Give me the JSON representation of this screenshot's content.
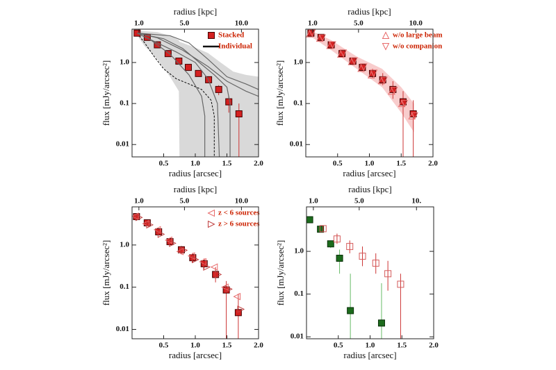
{
  "chart_data": [
    {
      "type": "scatter",
      "log_y": true,
      "xlabel": "radius  [arcsec]",
      "x2label": "radius  [kpc]",
      "ylabel": "flux  [mJy/arcsec²]",
      "xlim": [
        0,
        2.0
      ],
      "xticks": [
        0.5,
        {
          "value": 1.0,
          "label": "1.0"
        },
        1.5,
        {
          "value": 2.0,
          "label": "2.0"
        }
      ],
      "x2lim": [
        0.4,
        11.5
      ],
      "x2ticks": [
        {
          "value": 1,
          "label": "1.0"
        },
        {
          "value": 5,
          "label": "5.0"
        },
        {
          "value": 10,
          "label": "10.0"
        }
      ],
      "ylim": [
        0.005,
        6.5
      ],
      "yticks": [
        0.01,
        0.1,
        {
          "value": 1,
          "label": "1.0"
        }
      ],
      "legend": "upper right",
      "band": {
        "color": "#d9d9d9",
        "x": [
          0.08,
          0.2,
          0.4,
          0.6,
          0.74,
          0.75,
          1.0,
          1.2,
          1.4,
          1.6,
          1.8,
          2.0
        ],
        "upper": [
          6,
          5.8,
          5.5,
          4.5,
          3.5,
          3.2,
          2.3,
          1.7,
          1.0,
          0.6,
          0.5,
          0.45
        ],
        "lower": [
          4.6,
          2.5,
          1.2,
          0.45,
          0.2,
          0.005,
          0.005,
          0.005,
          0.005,
          0.005,
          0.005,
          0.005
        ]
      },
      "dashed": {
        "color": "#000000",
        "x": [
          0.08,
          0.2,
          0.35,
          0.5,
          0.7,
          0.9,
          1.1,
          1.25,
          1.3,
          1.3
        ],
        "values": [
          5.2,
          3.0,
          1.4,
          0.7,
          0.4,
          0.3,
          0.22,
          0.12,
          0.05,
          0.005
        ]
      },
      "series": [
        {
          "name": "Stacked",
          "marker": "square",
          "color": "#d42020",
          "x": [
            0.08,
            0.24,
            0.4,
            0.57,
            0.74,
            0.89,
            1.05,
            1.21,
            1.37,
            1.53,
            1.69
          ],
          "values": [
            5.2,
            4.1,
            2.7,
            1.65,
            1.08,
            0.76,
            0.54,
            0.38,
            0.22,
            0.11,
            0.056
          ],
          "err_lo": [
            4.6,
            3.6,
            2.35,
            1.45,
            0.93,
            0.65,
            0.45,
            0.31,
            0.16,
            0.06,
            0.005
          ],
          "err_hi": [
            5.8,
            4.6,
            3.1,
            1.9,
            1.25,
            0.88,
            0.64,
            0.46,
            0.28,
            0.15,
            0.1
          ]
        },
        {
          "name": "Individual",
          "marker": "line",
          "color": "#666666",
          "lines": [
            {
              "x": [
                0.08,
                0.3,
                0.6,
                0.9,
                1.1,
                1.15,
                1.15
              ],
              "values": [
                5.2,
                3.5,
                1.6,
                0.5,
                0.15,
                0.05,
                0.005
              ]
            },
            {
              "x": [
                0.08,
                0.4,
                0.7,
                1.0,
                1.2,
                1.35,
                1.38
              ],
              "values": [
                5.2,
                3.0,
                1.8,
                1.0,
                0.4,
                0.1,
                0.005
              ]
            },
            {
              "x": [
                0.08,
                0.5,
                0.8,
                1.1,
                1.3,
                1.5,
                1.55,
                1.55
              ],
              "values": [
                5.2,
                3.8,
                2.2,
                0.9,
                0.5,
                0.25,
                0.1,
                0.005
              ]
            },
            {
              "x": [
                0.08,
                0.6,
                0.9,
                1.2,
                1.5,
                1.8,
                2.0
              ],
              "values": [
                5.2,
                4.5,
                3.0,
                1.2,
                0.45,
                0.3,
                0.22
              ]
            },
            {
              "x": [
                0.08,
                0.4,
                0.8,
                1.2,
                1.5,
                1.8,
                2.0
              ],
              "values": [
                5.2,
                4.0,
                2.0,
                0.8,
                0.35,
                0.2,
                0.15
              ]
            }
          ]
        }
      ]
    },
    {
      "type": "scatter",
      "log_y": true,
      "xlabel": "radius  [arcsec]",
      "x2label": "radius  [kpc]",
      "ylabel": "flux  [mJy/arcsec²]",
      "xlim": [
        0,
        2.0
      ],
      "xticks": [
        0.5,
        {
          "value": 1.0,
          "label": "1.0"
        },
        1.5,
        {
          "value": 2.0,
          "label": "2.0"
        }
      ],
      "x2lim": [
        0.4,
        11.5
      ],
      "x2ticks": [
        {
          "value": 1,
          "label": "1.0"
        },
        {
          "value": 5,
          "label": "5.0"
        },
        {
          "value": 10,
          "label": "10.0"
        }
      ],
      "ylim": [
        0.005,
        6.5
      ],
      "yticks": [
        0.01,
        0.1,
        {
          "value": 1,
          "label": "1.0"
        }
      ],
      "legend": "upper right",
      "band": {
        "color": "#f8cccc",
        "x": [
          0.08,
          0.4,
          0.8,
          1.2,
          1.5,
          1.7
        ],
        "upper": [
          6,
          3.5,
          1.4,
          0.7,
          0.25,
          0.1
        ],
        "lower": [
          4.3,
          2.0,
          0.7,
          0.25,
          0.06,
          0.02
        ]
      },
      "series": [
        {
          "marker": "square",
          "color": "#d42020",
          "x": [
            0.08,
            0.24,
            0.4,
            0.57,
            0.74,
            0.89,
            1.05,
            1.21,
            1.37,
            1.53,
            1.69
          ],
          "values": [
            5.2,
            4.1,
            2.7,
            1.65,
            1.08,
            0.76,
            0.54,
            0.38,
            0.22,
            0.11,
            0.056
          ],
          "err_lo": [
            4.5,
            3.5,
            2.3,
            1.4,
            0.9,
            0.63,
            0.42,
            0.28,
            0.13,
            0.005,
            0.005
          ],
          "err_hi": [
            5.9,
            4.8,
            3.2,
            2.0,
            1.3,
            0.92,
            0.7,
            0.55,
            0.35,
            0.2,
            0.12
          ]
        },
        {
          "name": "w/o large beam",
          "marker": "triangle-up",
          "color": "#e86a6a",
          "x": [
            0.06,
            0.22,
            0.38,
            0.55,
            0.72,
            0.87,
            1.03,
            1.19,
            1.35,
            1.51,
            1.67
          ],
          "values": [
            5.0,
            3.9,
            2.6,
            1.6,
            1.05,
            0.72,
            0.5,
            0.36,
            0.2,
            0.1,
            0.05
          ]
        },
        {
          "name": "w/o companion",
          "marker": "triangle-down",
          "color": "#e86a6a",
          "x": [
            0.1,
            0.26,
            0.42,
            0.59,
            0.76,
            0.91,
            1.07,
            1.23,
            1.39,
            1.55,
            1.71
          ],
          "values": [
            5.3,
            4.0,
            2.7,
            1.7,
            1.1,
            0.78,
            0.55,
            0.37,
            0.21,
            0.1,
            0.05
          ]
        }
      ]
    },
    {
      "type": "scatter",
      "log_y": true,
      "xlabel": "radius  [arcsec]",
      "x2label": "radius  [kpc]",
      "ylabel": "flux  [mJy/arcsec²]",
      "xlim": [
        0,
        2.0
      ],
      "xticks": [
        0.5,
        {
          "value": 1.0,
          "label": "1.0"
        },
        1.5,
        {
          "value": 2.0,
          "label": "2.0"
        }
      ],
      "x2lim": [
        0.4,
        11.5
      ],
      "x2ticks": [
        {
          "value": 1,
          "label": "1.0"
        },
        {
          "value": 5,
          "label": "5.0"
        },
        {
          "value": 10,
          "label": "10.0"
        }
      ],
      "ylim": [
        0.006,
        8
      ],
      "yticks": [
        0.01,
        0.1,
        {
          "value": 1,
          "label": "1.0"
        }
      ],
      "legend": "upper right",
      "series": [
        {
          "marker": "square",
          "color": "#d42020",
          "x": [
            0.07,
            0.24,
            0.42,
            0.6,
            0.78,
            0.96,
            1.14,
            1.32,
            1.49,
            1.68
          ],
          "values": [
            4.7,
            3.35,
            2.05,
            1.2,
            0.77,
            0.5,
            0.36,
            0.2,
            0.086,
            0.025
          ],
          "err_lo": [
            4.3,
            2.9,
            1.7,
            1.0,
            0.6,
            0.38,
            0.27,
            0.13,
            0.006,
            0.006
          ],
          "err_hi": [
            5.1,
            3.8,
            2.4,
            1.45,
            0.95,
            0.65,
            0.48,
            0.3,
            0.14,
            0.07
          ]
        },
        {
          "name": "z < 6 sources",
          "marker": "triangle-left",
          "color": "#e86a6a",
          "x": [
            0.05,
            0.22,
            0.4,
            0.58,
            0.76,
            0.94,
            1.12,
            1.3,
            1.47,
            1.66
          ],
          "values": [
            4.8,
            3.2,
            2.3,
            1.3,
            0.7,
            0.55,
            0.4,
            0.3,
            0.1,
            0.06
          ]
        },
        {
          "name": "z > 6 sources",
          "marker": "triangle-right",
          "color": "#c04040",
          "x": [
            0.11,
            0.28,
            0.46,
            0.64,
            0.82,
            1.0,
            1.18,
            1.36,
            1.53,
            1.72
          ],
          "values": [
            4.5,
            3.0,
            1.8,
            1.1,
            0.75,
            0.45,
            0.3,
            0.2,
            0.09,
            0.03
          ]
        }
      ]
    },
    {
      "type": "scatter",
      "log_y": true,
      "xlabel": "radius  [arcsec]",
      "x2label": "radius  [kpc]",
      "ylabel": "flux  [mJy/arcsec²]",
      "xlim": [
        0,
        2.0
      ],
      "xticks": [
        0.5,
        {
          "value": 1.0,
          "label": "1.0"
        },
        1.5,
        {
          "value": 2.0,
          "label": "2.0"
        }
      ],
      "x2lim": [
        0.4,
        11.5
      ],
      "x2ticks": [
        {
          "value": 1,
          "label": "1.0"
        },
        {
          "value": 5,
          "label": "5.0"
        },
        {
          "value": 10,
          "label": "10."
        }
      ],
      "ylim": [
        0.009,
        11
      ],
      "yticks": [
        0.01,
        0.1,
        {
          "value": 1,
          "label": "1.0"
        }
      ],
      "series": [
        {
          "marker": "square",
          "color": "#1c6b1c",
          "x": [
            0.05,
            0.22,
            0.38,
            0.52,
            0.69,
            1.18
          ],
          "values": [
            5.5,
            3.3,
            1.5,
            0.69,
            0.041,
            0.021
          ],
          "err_lo": [
            4.9,
            2.8,
            1.2,
            0.3,
            0.009,
            0.009
          ],
          "err_hi": [
            6.1,
            3.8,
            1.8,
            1.1,
            0.3,
            0.18
          ]
        },
        {
          "marker": "square-open",
          "color": "#d45a5a",
          "x": [
            0.26,
            0.48,
            0.68,
            0.88,
            1.09,
            1.28,
            1.48
          ],
          "values": [
            3.4,
            1.95,
            1.3,
            0.77,
            0.53,
            0.3,
            0.17
          ],
          "err_lo": [
            2.9,
            1.5,
            0.9,
            0.45,
            0.3,
            0.12,
            0.009
          ],
          "err_hi": [
            4.0,
            2.6,
            1.8,
            1.3,
            0.9,
            0.6,
            0.3
          ]
        }
      ]
    }
  ]
}
